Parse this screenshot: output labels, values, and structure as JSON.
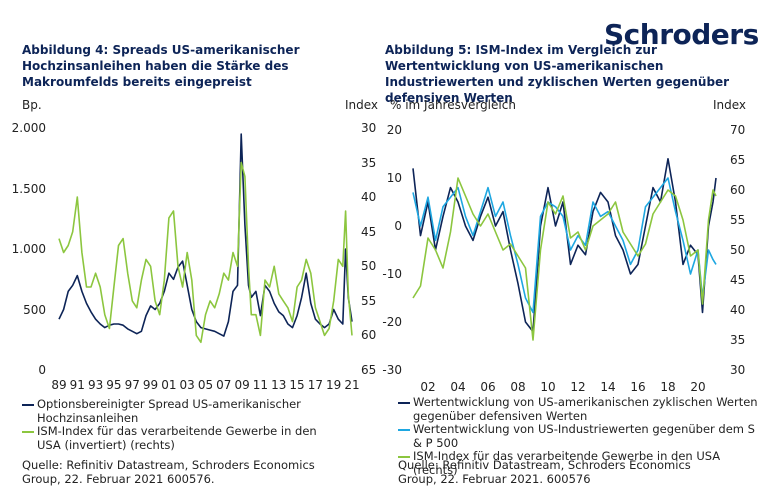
{
  "logo": "Schroders",
  "chart_data": [
    {
      "type": "line",
      "title": "Abbildung 4: Spreads US-amerikanischer Hochzinsanleihen haben die Stärke des Makroumfelds bereits eingepreist",
      "y_label": "Bp.",
      "y2_label": "Index",
      "x": [
        1989,
        1989.5,
        1990,
        1990.5,
        1991,
        1991.5,
        1992,
        1992.5,
        1993,
        1993.5,
        1994,
        1994.5,
        1995,
        1995.5,
        1996,
        1996.5,
        1997,
        1997.5,
        1998,
        1998.5,
        1999,
        1999.5,
        2000,
        2000.5,
        2001,
        2001.5,
        2002,
        2002.5,
        2003,
        2003.5,
        2004,
        2004.5,
        2005,
        2005.5,
        2006,
        2006.5,
        2007,
        2007.5,
        2008,
        2008.5,
        2008.9,
        2009.3,
        2009.7,
        2010,
        2010.5,
        2011,
        2011.5,
        2012,
        2012.5,
        2013,
        2013.5,
        2014,
        2014.5,
        2015,
        2015.5,
        2016,
        2016.5,
        2017,
        2017.5,
        2018,
        2018.5,
        2019,
        2019.5,
        2020,
        2020.3,
        2020.6,
        2021
      ],
      "xlim": [
        1989,
        2021
      ],
      "xticks": [
        {
          "value": 1989,
          "label": "89"
        },
        {
          "value": 1991,
          "label": "91"
        },
        {
          "value": 1993,
          "label": "93"
        },
        {
          "value": 1995,
          "label": "95"
        },
        {
          "value": 1997,
          "label": "97"
        },
        {
          "value": 1999,
          "label": "99"
        },
        {
          "value": 2001,
          "label": "01"
        },
        {
          "value": 2003,
          "label": "03"
        },
        {
          "value": 2005,
          "label": "05"
        },
        {
          "value": 2007,
          "label": "07"
        },
        {
          "value": 2009,
          "label": "09"
        },
        {
          "value": 2011,
          "label": "11"
        },
        {
          "value": 2013,
          "label": "13"
        },
        {
          "value": 2015,
          "label": "15"
        },
        {
          "value": 2017,
          "label": "17"
        },
        {
          "value": 2019,
          "label": "19"
        },
        {
          "value": 2021,
          "label": "21"
        }
      ],
      "ylim": [
        0,
        2000
      ],
      "yticks": [
        0,
        500,
        {
          "value": 1000,
          "label": "1.000"
        },
        {
          "value": 1500,
          "label": "1.500"
        },
        {
          "value": 2000,
          "label": "2.000"
        }
      ],
      "y2lim": [
        65,
        30
      ],
      "y2ticks": [
        30,
        35,
        40,
        45,
        50,
        55,
        60,
        65
      ],
      "series": [
        {
          "name": "Optionsbereinigter Spread US-amerikanischer Hochzinsanleihen",
          "color": "#0d2457",
          "values": [
            420,
            500,
            650,
            700,
            780,
            650,
            550,
            480,
            420,
            380,
            350,
            370,
            380,
            380,
            370,
            340,
            320,
            300,
            320,
            450,
            530,
            500,
            550,
            650,
            800,
            750,
            850,
            900,
            700,
            500,
            400,
            350,
            340,
            330,
            320,
            300,
            280,
            400,
            650,
            700,
            1950,
            1200,
            700,
            600,
            650,
            450,
            700,
            650,
            550,
            480,
            450,
            380,
            350,
            450,
            600,
            800,
            550,
            420,
            380,
            350,
            380,
            500,
            420,
            380,
            1000,
            600,
            400
          ]
        },
        {
          "name": "ISM-Index für das verarbeitende Gewerbe in den USA (invertiert) (rechts)",
          "color": "#8cc63f",
          "axis": "y2",
          "values": [
            46,
            48,
            47,
            45,
            40,
            48,
            53,
            53,
            51,
            53,
            57,
            59,
            53,
            47,
            46,
            51,
            55,
            56,
            52,
            49,
            50,
            55,
            57,
            52,
            43,
            42,
            50,
            53,
            48,
            52,
            60,
            61,
            57,
            55,
            56,
            54,
            51,
            52,
            48,
            50,
            35,
            37,
            50,
            57,
            57,
            60,
            52,
            53,
            50,
            54,
            55,
            56,
            58,
            53,
            52,
            49,
            51,
            56,
            58,
            60,
            59,
            55,
            49,
            50,
            42,
            54,
            60
          ]
        }
      ],
      "source": "Quelle: Refinitiv Datastream, Schroders Economics Group, 22. Februar 2021 600576."
    },
    {
      "type": "line",
      "title": "Abbildung 5: ISM-Index im Vergleich zur Wertentwicklung von US-amerikanischen Industriewerten und zyklischen Werten gegenüber defensiven Werten",
      "y_label": "% im Jahresvergleich",
      "y2_label": "Index",
      "x": [
        2001,
        2001.5,
        2002,
        2002.5,
        2003,
        2003.5,
        2004,
        2004.5,
        2005,
        2005.5,
        2006,
        2006.5,
        2007,
        2007.5,
        2008,
        2008.5,
        2009,
        2009.5,
        2010,
        2010.5,
        2011,
        2011.5,
        2012,
        2012.5,
        2013,
        2013.5,
        2014,
        2014.5,
        2015,
        2015.5,
        2016,
        2016.5,
        2017,
        2017.5,
        2018,
        2018.5,
        2019,
        2019.5,
        2020,
        2020.3,
        2020.7,
        2021,
        2021.2
      ],
      "xlim": [
        2000.5,
        2021.5
      ],
      "xticks": [
        {
          "value": 2002,
          "label": "02"
        },
        {
          "value": 2004,
          "label": "04"
        },
        {
          "value": 2006,
          "label": "06"
        },
        {
          "value": 2008,
          "label": "08"
        },
        {
          "value": 2010,
          "label": "10"
        },
        {
          "value": 2012,
          "label": "12"
        },
        {
          "value": 2014,
          "label": "14"
        },
        {
          "value": 2016,
          "label": "16"
        },
        {
          "value": 2018,
          "label": "18"
        },
        {
          "value": 2020,
          "label": "20"
        }
      ],
      "ylim": [
        -30,
        20
      ],
      "yticks": [
        -30,
        -20,
        -10,
        0,
        10,
        20
      ],
      "y2lim": [
        30,
        70
      ],
      "y2ticks": [
        30,
        35,
        40,
        45,
        50,
        55,
        60,
        65,
        70
      ],
      "series": [
        {
          "name": "Wertentwicklung von US-amerikanischen zyklischen Werten gegenüber defensiven Werten",
          "color": "#0d2457",
          "values": [
            12,
            -2,
            5,
            -5,
            2,
            8,
            5,
            0,
            -3,
            2,
            6,
            0,
            3,
            -5,
            -12,
            -20,
            -22,
            0,
            8,
            0,
            5,
            -8,
            -4,
            -6,
            3,
            7,
            5,
            -2,
            -5,
            -10,
            -8,
            0,
            8,
            5,
            14,
            5,
            -8,
            -4,
            -6,
            -18,
            0,
            5,
            10
          ]
        },
        {
          "name": "Wertentwicklung von US-Industriewerten gegenüber dem S & P 500",
          "color": "#1ea7e1",
          "values": [
            7,
            0,
            6,
            -3,
            4,
            6,
            8,
            2,
            -2,
            3,
            8,
            2,
            5,
            -2,
            -8,
            -15,
            -18,
            2,
            5,
            4,
            2,
            -5,
            -2,
            -4,
            5,
            2,
            3,
            0,
            -3,
            -8,
            -5,
            4,
            6,
            8,
            10,
            3,
            -3,
            -10,
            -5,
            -15,
            -5,
            -7,
            -8
          ]
        },
        {
          "name": "ISM-Index für das verarbeitende Gewerbe in den USA (rechts)",
          "color": "#8cc63f",
          "axis": "y2",
          "values": [
            42,
            44,
            52,
            50,
            47,
            53,
            62,
            59,
            56,
            54,
            56,
            53,
            50,
            51,
            49,
            47,
            35,
            50,
            58,
            56,
            59,
            52,
            53,
            50,
            54,
            55,
            56,
            58,
            53,
            51,
            49,
            51,
            56,
            58,
            60,
            59,
            55,
            49,
            50,
            41,
            55,
            60,
            59
          ]
        }
      ],
      "source": "Quelle: Refinitiv Datastream, Schroders Economics Group, 22. Februar 2021. 600576"
    }
  ]
}
